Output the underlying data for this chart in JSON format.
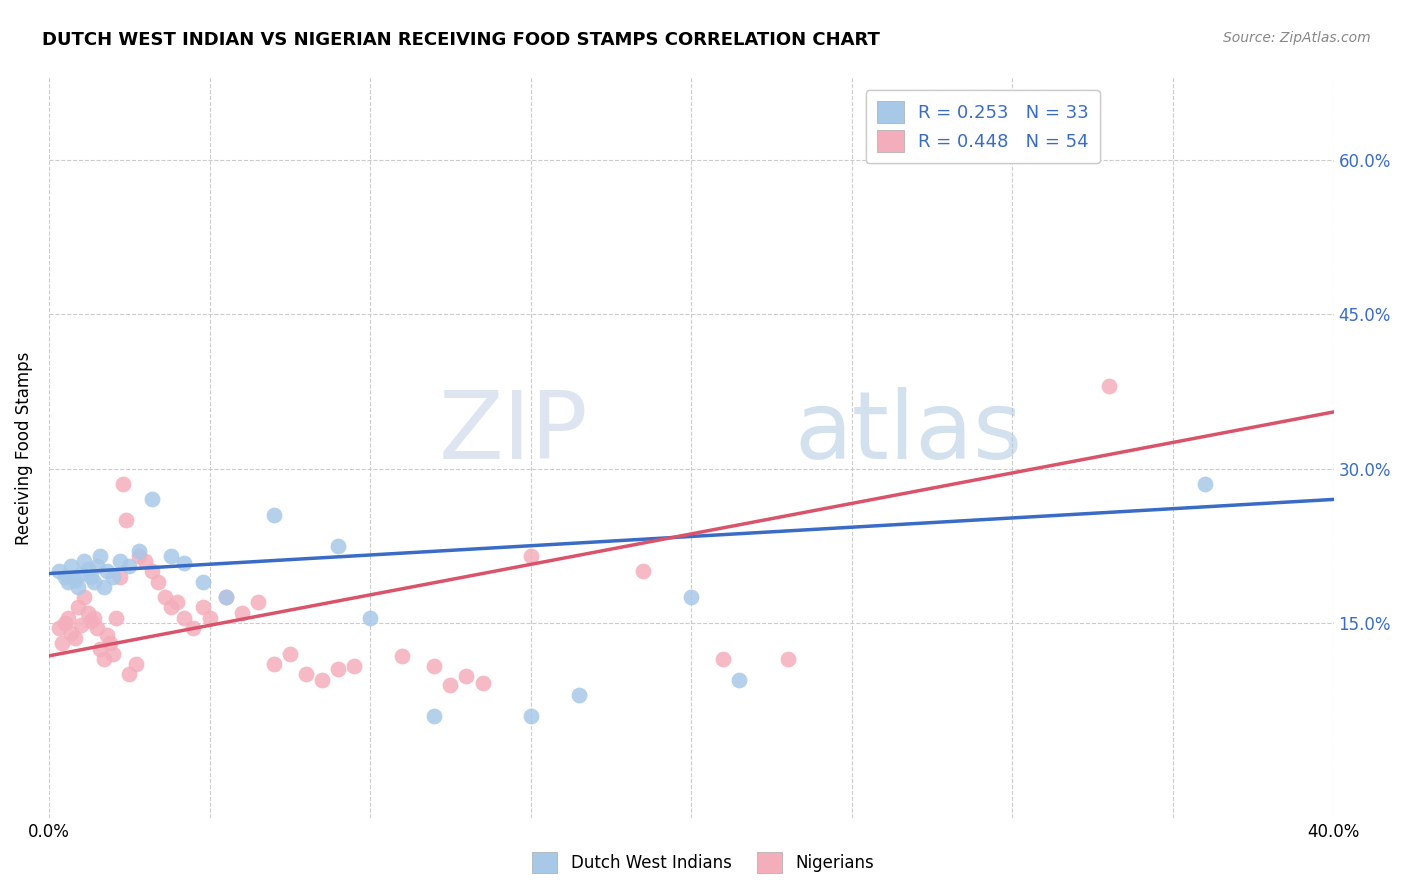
{
  "title": "DUTCH WEST INDIAN VS NIGERIAN RECEIVING FOOD STAMPS CORRELATION CHART",
  "source": "Source: ZipAtlas.com",
  "ylabel": "Receiving Food Stamps",
  "yticks": [
    "60.0%",
    "45.0%",
    "30.0%",
    "15.0%"
  ],
  "ytick_values": [
    0.6,
    0.45,
    0.3,
    0.15
  ],
  "xlim": [
    0.0,
    0.4
  ],
  "ylim": [
    -0.04,
    0.68
  ],
  "legend_label1": "R = 0.253   N = 33",
  "legend_label2": "R = 0.448   N = 54",
  "legend_bottom1": "Dutch West Indians",
  "legend_bottom2": "Nigerians",
  "color_blue": "#A8C8E8",
  "color_pink": "#F4AEBB",
  "line_blue": "#3A6CC6",
  "line_pink": "#D9546B",
  "watermark_zip": "ZIP",
  "watermark_atlas": "atlas",
  "blue_line_x": [
    0.0,
    0.4
  ],
  "blue_line_y": [
    0.198,
    0.27
  ],
  "pink_line_x": [
    0.0,
    0.4
  ],
  "pink_line_y": [
    0.118,
    0.355
  ],
  "blue_points": [
    [
      0.003,
      0.2
    ],
    [
      0.005,
      0.195
    ],
    [
      0.006,
      0.19
    ],
    [
      0.007,
      0.205
    ],
    [
      0.008,
      0.192
    ],
    [
      0.009,
      0.185
    ],
    [
      0.01,
      0.198
    ],
    [
      0.011,
      0.21
    ],
    [
      0.012,
      0.202
    ],
    [
      0.013,
      0.195
    ],
    [
      0.014,
      0.19
    ],
    [
      0.015,
      0.205
    ],
    [
      0.016,
      0.215
    ],
    [
      0.017,
      0.185
    ],
    [
      0.018,
      0.2
    ],
    [
      0.02,
      0.195
    ],
    [
      0.022,
      0.21
    ],
    [
      0.025,
      0.205
    ],
    [
      0.028,
      0.22
    ],
    [
      0.032,
      0.27
    ],
    [
      0.038,
      0.215
    ],
    [
      0.042,
      0.208
    ],
    [
      0.048,
      0.19
    ],
    [
      0.055,
      0.175
    ],
    [
      0.07,
      0.255
    ],
    [
      0.09,
      0.225
    ],
    [
      0.1,
      0.155
    ],
    [
      0.12,
      0.06
    ],
    [
      0.15,
      0.06
    ],
    [
      0.165,
      0.08
    ],
    [
      0.2,
      0.175
    ],
    [
      0.215,
      0.095
    ],
    [
      0.36,
      0.285
    ]
  ],
  "pink_points": [
    [
      0.003,
      0.145
    ],
    [
      0.004,
      0.13
    ],
    [
      0.005,
      0.15
    ],
    [
      0.006,
      0.155
    ],
    [
      0.007,
      0.14
    ],
    [
      0.008,
      0.135
    ],
    [
      0.009,
      0.165
    ],
    [
      0.01,
      0.148
    ],
    [
      0.011,
      0.175
    ],
    [
      0.012,
      0.16
    ],
    [
      0.013,
      0.152
    ],
    [
      0.014,
      0.155
    ],
    [
      0.015,
      0.145
    ],
    [
      0.016,
      0.125
    ],
    [
      0.017,
      0.115
    ],
    [
      0.018,
      0.138
    ],
    [
      0.019,
      0.13
    ],
    [
      0.02,
      0.12
    ],
    [
      0.021,
      0.155
    ],
    [
      0.022,
      0.195
    ],
    [
      0.023,
      0.285
    ],
    [
      0.024,
      0.25
    ],
    [
      0.025,
      0.1
    ],
    [
      0.027,
      0.11
    ],
    [
      0.028,
      0.215
    ],
    [
      0.03,
      0.21
    ],
    [
      0.032,
      0.2
    ],
    [
      0.034,
      0.19
    ],
    [
      0.036,
      0.175
    ],
    [
      0.038,
      0.165
    ],
    [
      0.04,
      0.17
    ],
    [
      0.042,
      0.155
    ],
    [
      0.045,
      0.145
    ],
    [
      0.048,
      0.165
    ],
    [
      0.05,
      0.155
    ],
    [
      0.055,
      0.175
    ],
    [
      0.06,
      0.16
    ],
    [
      0.065,
      0.17
    ],
    [
      0.07,
      0.11
    ],
    [
      0.075,
      0.12
    ],
    [
      0.08,
      0.1
    ],
    [
      0.085,
      0.095
    ],
    [
      0.09,
      0.105
    ],
    [
      0.095,
      0.108
    ],
    [
      0.11,
      0.118
    ],
    [
      0.12,
      0.108
    ],
    [
      0.125,
      0.09
    ],
    [
      0.13,
      0.098
    ],
    [
      0.135,
      0.092
    ],
    [
      0.15,
      0.215
    ],
    [
      0.185,
      0.2
    ],
    [
      0.21,
      0.115
    ],
    [
      0.23,
      0.115
    ],
    [
      0.33,
      0.38
    ]
  ]
}
